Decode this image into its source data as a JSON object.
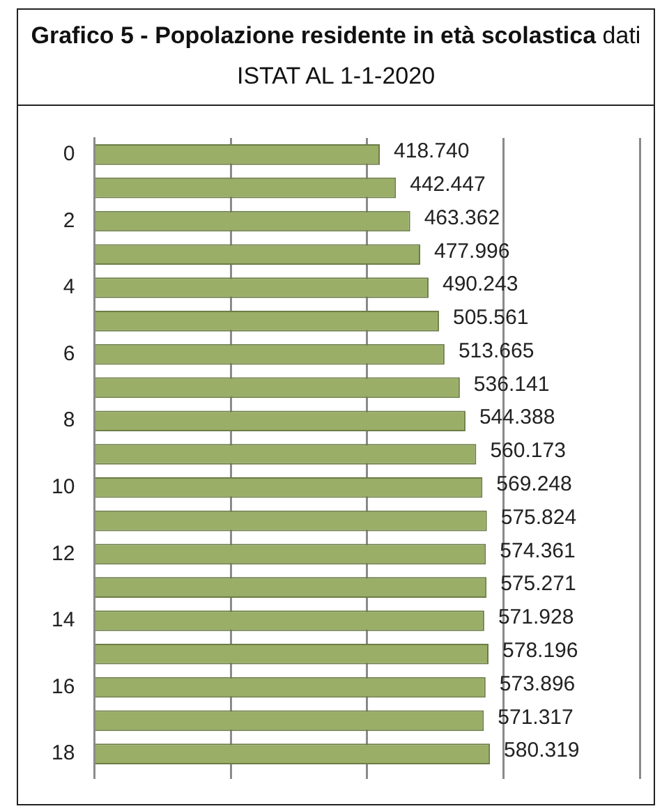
{
  "chart_data": {
    "type": "bar",
    "orientation": "horizontal",
    "title": "Grafico 5 - Popolazione residente in età scolastica",
    "subtitle": "dati ISTAT AL 1-1-2020",
    "categories": [
      "0",
      null,
      "2",
      null,
      "4",
      null,
      "6",
      null,
      "8",
      null,
      "10",
      null,
      "12",
      null,
      "14",
      null,
      "16",
      null,
      "18"
    ],
    "values": [
      418740,
      442447,
      463362,
      477996,
      490243,
      505561,
      513665,
      536141,
      544388,
      560173,
      569248,
      575824,
      574361,
      575271,
      571928,
      578196,
      573896,
      571317,
      580319
    ],
    "value_labels": [
      "418.740",
      "442.447",
      "463.362",
      "477.996",
      "490.243",
      "505.561",
      "513.665",
      "536.141",
      "544.388",
      "560.173",
      "569.248",
      "575.824",
      "574.361",
      "575.271",
      "571.928",
      "578.196",
      "573.896",
      "571.317",
      "580.319"
    ],
    "color": "#9aae68",
    "xlim": [
      0,
      800000
    ],
    "xticks": [
      {
        "value": 0,
        "label": null
      },
      {
        "value": 200000,
        "label": null
      },
      {
        "value": 400000,
        "label": null
      },
      {
        "value": 600000,
        "label": null
      },
      {
        "value": 800000,
        "label": null
      }
    ],
    "grid": "x",
    "tick_labels": "y",
    "legend": false
  }
}
